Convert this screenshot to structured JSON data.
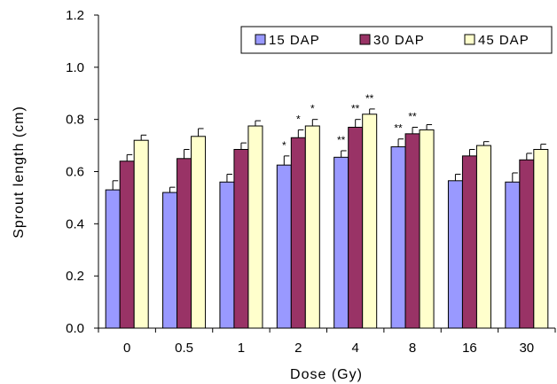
{
  "chart_data": {
    "type": "bar",
    "title": "",
    "xlabel": "Dose (Gy)",
    "ylabel": "Sprout length (cm)",
    "ylim": [
      0,
      1.2
    ],
    "yticks": [
      "0.0",
      "0.2",
      "0.4",
      "0.6",
      "0.8",
      "1.0",
      "1.2"
    ],
    "categories": [
      "0",
      "0.5",
      "1",
      "2",
      "4",
      "8",
      "16",
      "30"
    ],
    "grid": false,
    "legend_position": "top-right",
    "series": [
      {
        "name": "15 DAP",
        "color": "#9999ff",
        "values": [
          0.53,
          0.52,
          0.56,
          0.625,
          0.655,
          0.695,
          0.565,
          0.56
        ],
        "errors": [
          0.035,
          0.02,
          0.03,
          0.035,
          0.025,
          0.03,
          0.025,
          0.035
        ]
      },
      {
        "name": "30 DAP",
        "color": "#993366",
        "values": [
          0.64,
          0.65,
          0.685,
          0.73,
          0.77,
          0.745,
          0.66,
          0.645
        ],
        "errors": [
          0.025,
          0.035,
          0.025,
          0.03,
          0.03,
          0.025,
          0.025,
          0.025
        ]
      },
      {
        "name": "45 DAP",
        "color": "#ffffcc",
        "values": [
          0.72,
          0.735,
          0.775,
          0.775,
          0.82,
          0.76,
          0.7,
          0.685
        ],
        "errors": [
          0.02,
          0.03,
          0.02,
          0.025,
          0.02,
          0.02,
          0.015,
          0.02
        ]
      }
    ],
    "annotations": [
      {
        "category": "2",
        "series": 0,
        "text": "*"
      },
      {
        "category": "2",
        "series": 1,
        "text": "*"
      },
      {
        "category": "2",
        "series": 2,
        "text": "*"
      },
      {
        "category": "4",
        "series": 0,
        "text": "**"
      },
      {
        "category": "4",
        "series": 1,
        "text": "**"
      },
      {
        "category": "4",
        "series": 2,
        "text": "**"
      },
      {
        "category": "8",
        "series": 0,
        "text": "**"
      },
      {
        "category": "8",
        "series": 1,
        "text": "**"
      }
    ]
  }
}
